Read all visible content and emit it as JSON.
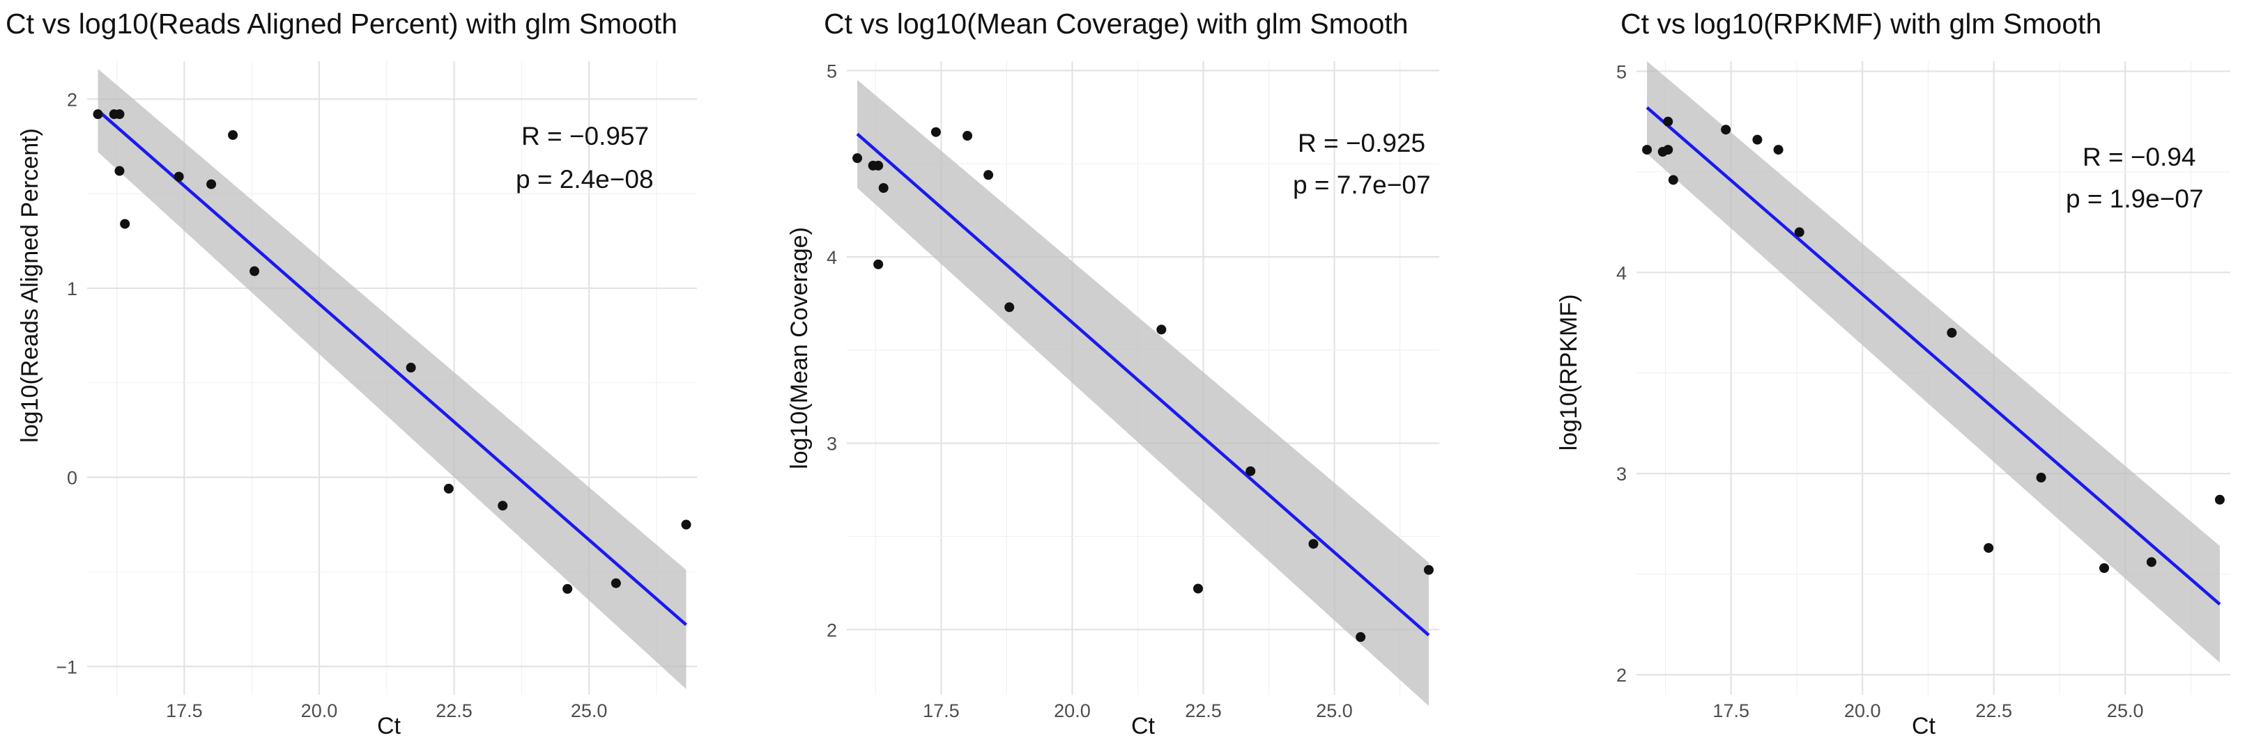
{
  "colors": {
    "point": "#111111",
    "fit_line": "#1a1aee",
    "ribbon": "#bfbfbf"
  },
  "chart_data": [
    {
      "type": "scatter",
      "title": "Ct vs log10(Reads Aligned Percent) with glm Smooth",
      "xlabel": "Ct",
      "ylabel": "log10(Reads Aligned Percent)",
      "xlim": [
        15.7,
        27.0
      ],
      "ylim": [
        -1.15,
        2.2
      ],
      "x_ticks": [
        17.5,
        20.0,
        22.5,
        25.0
      ],
      "x_tick_labels": [
        "17.5",
        "20.0",
        "22.5",
        "25.0"
      ],
      "y_ticks": [
        -1,
        0,
        1,
        2
      ],
      "y_tick_labels": [
        "−1",
        "0",
        "1",
        "2"
      ],
      "points": [
        {
          "x": 15.9,
          "y": 1.92
        },
        {
          "x": 16.2,
          "y": 1.92
        },
        {
          "x": 16.3,
          "y": 1.92
        },
        {
          "x": 16.3,
          "y": 1.62
        },
        {
          "x": 16.4,
          "y": 1.34
        },
        {
          "x": 17.4,
          "y": 1.59
        },
        {
          "x": 18.0,
          "y": 1.55
        },
        {
          "x": 18.4,
          "y": 1.81
        },
        {
          "x": 18.8,
          "y": 1.09
        },
        {
          "x": 21.7,
          "y": 0.58
        },
        {
          "x": 22.4,
          "y": -0.06
        },
        {
          "x": 23.4,
          "y": -0.15
        },
        {
          "x": 24.6,
          "y": -0.59
        },
        {
          "x": 25.5,
          "y": -0.56
        },
        {
          "x": 26.8,
          "y": -0.25
        }
      ],
      "fit": {
        "x": [
          15.9,
          26.8
        ],
        "y": [
          1.94,
          -0.78
        ],
        "lower": [
          1.72,
          -1.12
        ],
        "upper": [
          2.16,
          -0.49
        ]
      },
      "annotation": {
        "r_text": "R = −0.957",
        "p_text": "p = 2.4e−08"
      }
    },
    {
      "type": "scatter",
      "title": "Ct vs log10(Mean Coverage) with glm Smooth",
      "xlabel": "Ct",
      "ylabel": "log10(Mean Coverage)",
      "xlim": [
        15.7,
        27.0
      ],
      "ylim": [
        1.65,
        5.05
      ],
      "x_ticks": [
        17.5,
        20.0,
        22.5,
        25.0
      ],
      "x_tick_labels": [
        "17.5",
        "20.0",
        "22.5",
        "25.0"
      ],
      "y_ticks": [
        2,
        3,
        4,
        5
      ],
      "y_tick_labels": [
        "2",
        "3",
        "4",
        "5"
      ],
      "points": [
        {
          "x": 15.9,
          "y": 4.53
        },
        {
          "x": 16.2,
          "y": 4.49
        },
        {
          "x": 16.3,
          "y": 4.49
        },
        {
          "x": 16.3,
          "y": 3.96
        },
        {
          "x": 16.4,
          "y": 4.37
        },
        {
          "x": 17.4,
          "y": 4.67
        },
        {
          "x": 18.0,
          "y": 4.65
        },
        {
          "x": 18.4,
          "y": 4.44
        },
        {
          "x": 18.8,
          "y": 3.73
        },
        {
          "x": 21.7,
          "y": 3.61
        },
        {
          "x": 22.4,
          "y": 2.22
        },
        {
          "x": 23.4,
          "y": 2.85
        },
        {
          "x": 24.6,
          "y": 2.46
        },
        {
          "x": 25.5,
          "y": 1.96
        },
        {
          "x": 26.8,
          "y": 2.32
        }
      ],
      "fit": {
        "x": [
          15.9,
          26.8
        ],
        "y": [
          4.66,
          1.97
        ],
        "lower": [
          4.37,
          1.59
        ],
        "upper": [
          4.95,
          2.36
        ]
      },
      "annotation": {
        "r_text": "R = −0.925",
        "p_text": "p = 7.7e−07"
      }
    },
    {
      "type": "scatter",
      "title": "Ct vs log10(RPKMF) with glm Smooth",
      "xlabel": "Ct",
      "ylabel": "log10(RPKMF)",
      "xlim": [
        15.7,
        27.0
      ],
      "ylim": [
        1.9,
        5.05
      ],
      "x_ticks": [
        17.5,
        20.0,
        22.5,
        25.0
      ],
      "x_tick_labels": [
        "17.5",
        "20.0",
        "22.5",
        "25.0"
      ],
      "y_ticks": [
        2,
        3,
        4,
        5
      ],
      "y_tick_labels": [
        "2",
        "3",
        "4",
        "5"
      ],
      "points": [
        {
          "x": 15.9,
          "y": 4.61
        },
        {
          "x": 16.2,
          "y": 4.6
        },
        {
          "x": 16.3,
          "y": 4.61
        },
        {
          "x": 16.3,
          "y": 4.75
        },
        {
          "x": 16.4,
          "y": 4.46
        },
        {
          "x": 17.4,
          "y": 4.71
        },
        {
          "x": 18.0,
          "y": 4.66
        },
        {
          "x": 18.4,
          "y": 4.61
        },
        {
          "x": 18.8,
          "y": 4.2
        },
        {
          "x": 21.7,
          "y": 3.7
        },
        {
          "x": 22.4,
          "y": 2.63
        },
        {
          "x": 23.4,
          "y": 2.98
        },
        {
          "x": 24.6,
          "y": 2.53
        },
        {
          "x": 25.5,
          "y": 2.56
        },
        {
          "x": 26.8,
          "y": 2.87
        }
      ],
      "fit": {
        "x": [
          15.9,
          26.8
        ],
        "y": [
          4.82,
          2.35
        ],
        "lower": [
          4.59,
          2.06
        ],
        "upper": [
          5.05,
          2.64
        ]
      },
      "annotation": {
        "r_text": "R = −0.94",
        "p_text": "p = 1.9e−07"
      }
    }
  ]
}
